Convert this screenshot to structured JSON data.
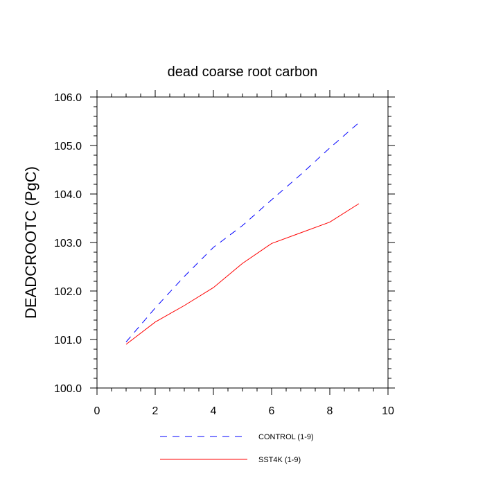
{
  "chart_data": {
    "type": "line",
    "title": "dead coarse root carbon",
    "xlabel": "",
    "ylabel": "DEADCROOTC  (PgC)",
    "xlim": [
      0,
      10
    ],
    "ylim": [
      100.0,
      106.0
    ],
    "x_ticks": [
      "0",
      "2",
      "4",
      "6",
      "8",
      "10"
    ],
    "y_ticks": [
      "100.0",
      "101.0",
      "102.0",
      "103.0",
      "104.0",
      "105.0",
      "106.0"
    ],
    "legend_position": "bottom",
    "grid": false,
    "series": [
      {
        "name": "CONTROL (1-9)",
        "color": "#0000ff",
        "dash": "dashed",
        "x": [
          1,
          2,
          3,
          4,
          5,
          6,
          7,
          8,
          9
        ],
        "values": [
          100.95,
          101.65,
          102.3,
          102.9,
          103.35,
          103.88,
          104.4,
          104.95,
          105.47
        ]
      },
      {
        "name": "SST4K (1-9)",
        "color": "#ff0000",
        "dash": "solid",
        "x": [
          1,
          2,
          3,
          4,
          5,
          6,
          7,
          8,
          9
        ],
        "values": [
          100.9,
          101.36,
          101.7,
          102.07,
          102.57,
          102.98,
          103.2,
          103.42,
          103.8
        ]
      }
    ]
  }
}
